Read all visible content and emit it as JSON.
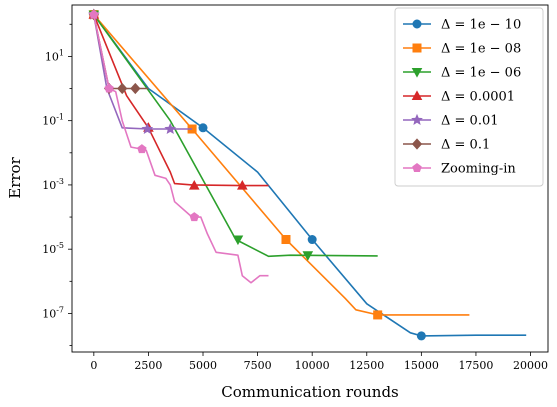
{
  "chart_data": {
    "type": "line",
    "xlabel": "Communication rounds",
    "ylabel": "Error",
    "xlim": [
      -1000,
      20800
    ],
    "ylim_log10": [
      -8.2,
      2.6
    ],
    "y_scale": "log",
    "x_ticks": [
      0,
      2500,
      5000,
      7500,
      10000,
      12500,
      15000,
      17500,
      20000
    ],
    "x_tick_labels": [
      "0",
      "2500",
      "5000",
      "7500",
      "10000",
      "12500",
      "15000",
      "17500",
      "20000"
    ],
    "y_ticks_log10": [
      1,
      -1,
      -3,
      -5,
      -7
    ],
    "y_tick_labels": [
      "10^1",
      "10^-1",
      "10^-3",
      "10^-5",
      "10^-7"
    ],
    "legend_position": "top-right",
    "grid": false,
    "series": [
      {
        "name": "Δ = 1e − 10",
        "color": "#1f77b4",
        "marker": "circle",
        "points": [
          [
            0,
            200
          ],
          [
            2500,
            1.0
          ],
          [
            5000,
            0.06
          ],
          [
            7500,
            0.0025
          ],
          [
            10000,
            2e-05
          ],
          [
            12500,
            2e-07
          ],
          [
            14500,
            2.5e-08
          ],
          [
            15000,
            2e-08
          ],
          [
            17500,
            2.1e-08
          ],
          [
            19800,
            2.1e-08
          ]
        ],
        "markers": [
          [
            0,
            200
          ],
          [
            5000,
            0.06
          ],
          [
            10000,
            2e-05
          ],
          [
            15000,
            2e-08
          ]
        ]
      },
      {
        "name": "Δ = 1e − 08",
        "color": "#ff7f0e",
        "marker": "square",
        "points": [
          [
            0,
            200
          ],
          [
            4500,
            0.055
          ],
          [
            8800,
            2e-05
          ],
          [
            11500,
            3e-07
          ],
          [
            12000,
            1.3e-07
          ],
          [
            13000,
            9e-08
          ],
          [
            15000,
            9e-08
          ],
          [
            17200,
            9e-08
          ]
        ],
        "markers": [
          [
            0,
            200
          ],
          [
            4500,
            0.055
          ],
          [
            8800,
            2e-05
          ],
          [
            13000,
            9e-08
          ]
        ]
      },
      {
        "name": "Δ = 1e − 06",
        "color": "#2ca02c",
        "marker": "triangle-down",
        "points": [
          [
            0,
            200
          ],
          [
            3500,
            0.1
          ],
          [
            6500,
            2e-05
          ],
          [
            8000,
            6e-06
          ],
          [
            9000,
            6.5e-06
          ],
          [
            13000,
            6.2e-06
          ]
        ],
        "markers": [
          [
            0,
            200
          ],
          [
            6600,
            2e-05
          ],
          [
            9800,
            6.5e-06
          ]
        ]
      },
      {
        "name": "Δ = 0.0001",
        "color": "#d62728",
        "marker": "triangle-up",
        "points": [
          [
            0,
            200
          ],
          [
            1500,
            0.6
          ],
          [
            2500,
            0.06
          ],
          [
            3500,
            0.0025
          ],
          [
            3700,
            0.0011
          ],
          [
            4500,
            0.001
          ],
          [
            6800,
            0.00095
          ],
          [
            8000,
            0.00095
          ]
        ],
        "markers": [
          [
            0,
            200
          ],
          [
            2500,
            0.06
          ],
          [
            4600,
            0.00095
          ],
          [
            6800,
            0.00095
          ]
        ]
      },
      {
        "name": "Δ = 0.01",
        "color": "#9467bd",
        "marker": "star",
        "points": [
          [
            0,
            200
          ],
          [
            600,
            1.0
          ],
          [
            1300,
            0.06
          ],
          [
            2500,
            0.055
          ],
          [
            3500,
            0.055
          ],
          [
            4500,
            0.055
          ]
        ],
        "markers": [
          [
            0,
            200
          ],
          [
            2450,
            0.055
          ],
          [
            3500,
            0.055
          ]
        ]
      },
      {
        "name": "Δ = 0.1",
        "color": "#8c564b",
        "marker": "diamond",
        "points": [
          [
            0,
            200
          ],
          [
            700,
            1.0
          ],
          [
            2500,
            1.0
          ]
        ],
        "markers": [
          [
            0,
            200
          ],
          [
            700,
            1.0
          ],
          [
            1300,
            1.0
          ],
          [
            1900,
            1.0
          ]
        ]
      },
      {
        "name": "Zooming-in",
        "color": "#e377c2",
        "marker": "pentagon",
        "points": [
          [
            0,
            200
          ],
          [
            700,
            1.0
          ],
          [
            1000,
            0.8
          ],
          [
            1300,
            0.1
          ],
          [
            1700,
            0.015
          ],
          [
            2200,
            0.013
          ],
          [
            2400,
            0.012
          ],
          [
            2800,
            0.002
          ],
          [
            3300,
            0.0016
          ],
          [
            3500,
            0.001
          ],
          [
            3700,
            0.0003
          ],
          [
            4500,
            0.0001
          ],
          [
            4900,
            0.0001
          ],
          [
            5200,
            3e-05
          ],
          [
            5600,
            8e-06
          ],
          [
            6600,
            6.5e-06
          ],
          [
            6800,
            1.5e-06
          ],
          [
            7200,
            9e-07
          ],
          [
            7600,
            1.5e-06
          ],
          [
            8000,
            1.5e-06
          ]
        ],
        "markers": [
          [
            0,
            200
          ],
          [
            700,
            1.0
          ],
          [
            2200,
            0.013
          ],
          [
            4600,
            0.0001
          ]
        ]
      }
    ]
  }
}
